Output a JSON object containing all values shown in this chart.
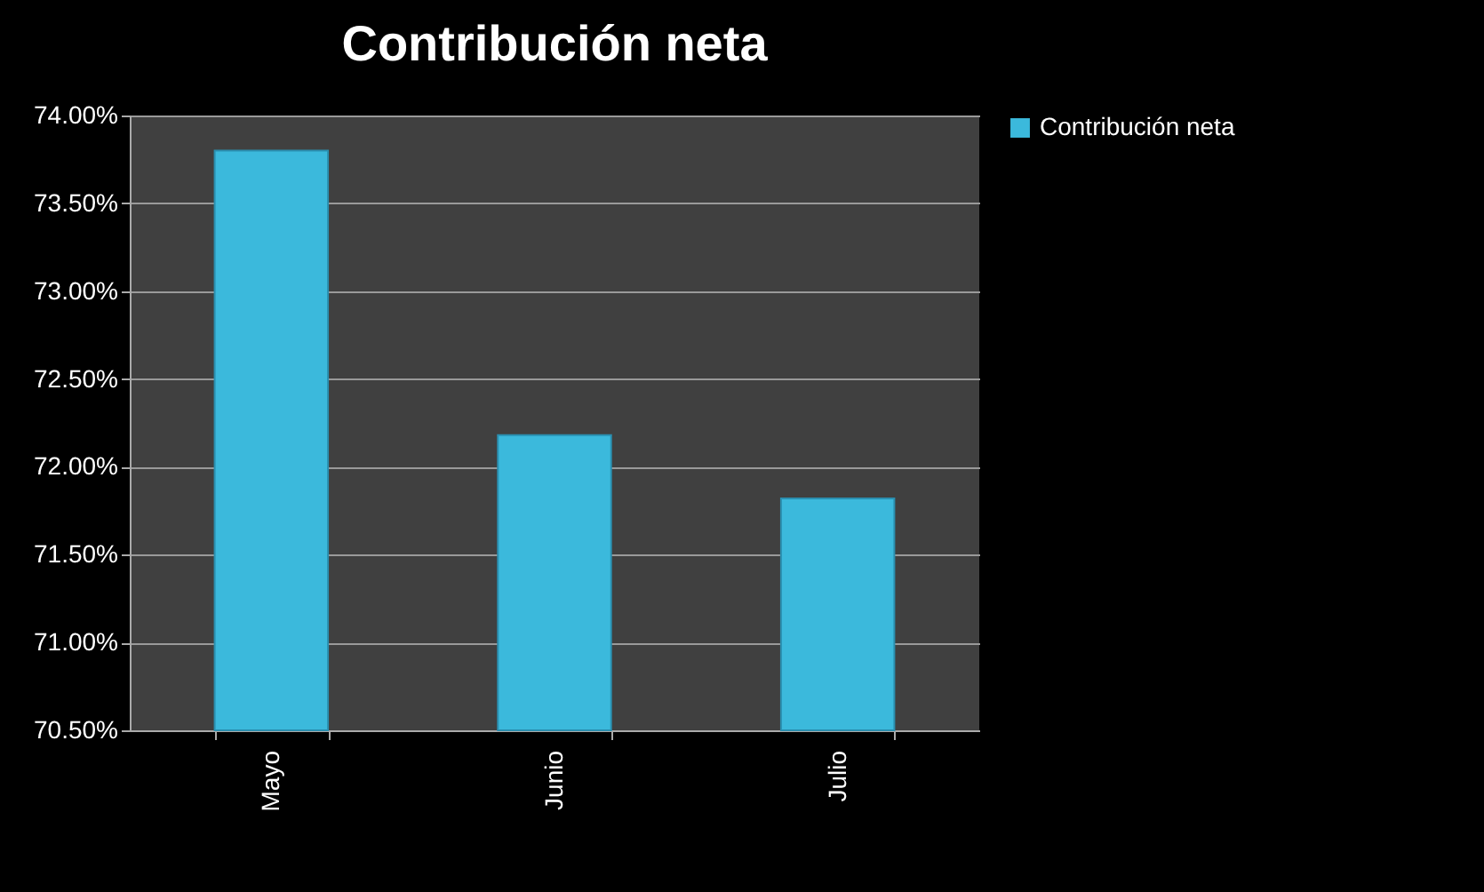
{
  "chart_data": {
    "type": "bar",
    "title": "Contribución neta",
    "categories": [
      "Mayo",
      "Junio",
      "Julio"
    ],
    "series": [
      {
        "name": "Contribución neta",
        "color": "#3bb9dc",
        "values": [
          73.8,
          72.18,
          71.82
        ]
      }
    ],
    "ylim": [
      70.5,
      74.0
    ],
    "yticks": [
      {
        "value": 70.5,
        "label": "70.50%"
      },
      {
        "value": 71.0,
        "label": "71.00%"
      },
      {
        "value": 71.5,
        "label": "71.50%"
      },
      {
        "value": 72.0,
        "label": "72.00%"
      },
      {
        "value": 72.5,
        "label": "72.50%"
      },
      {
        "value": 73.0,
        "label": "73.00%"
      },
      {
        "value": 73.5,
        "label": "73.50%"
      },
      {
        "value": 74.0,
        "label": "74.00%"
      }
    ],
    "grid": "y",
    "legend": "right"
  }
}
